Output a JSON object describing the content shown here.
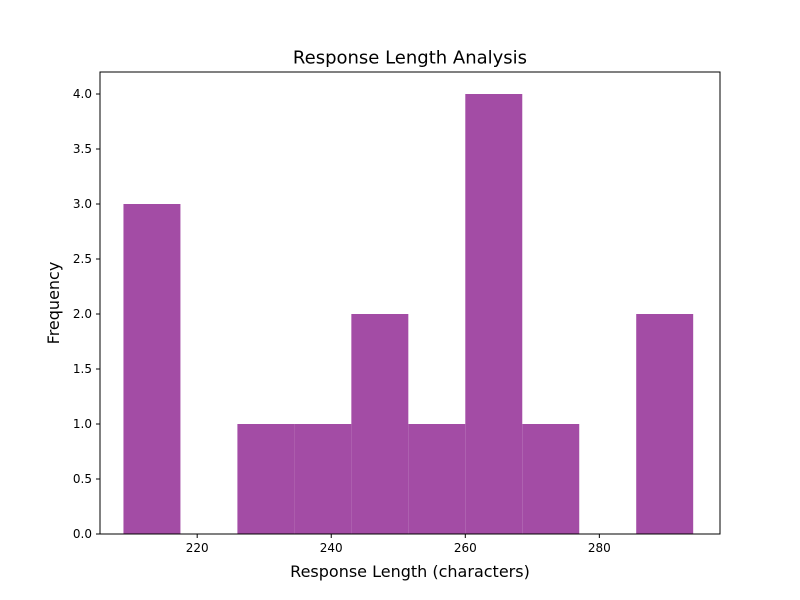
{
  "chart_data": {
    "type": "bar",
    "title": "Response Length Analysis",
    "xlabel": "Response Length (characters)",
    "ylabel": "Frequency",
    "bar_color": "#a34ca5",
    "xlim": [
      205.5,
      298
    ],
    "ylim": [
      0,
      4.2
    ],
    "x_ticks": [
      220,
      240,
      260,
      280
    ],
    "y_ticks": [
      0.0,
      0.5,
      1.0,
      1.5,
      2.0,
      2.5,
      3.0,
      3.5,
      4.0
    ],
    "x_tick_labels": [
      "220",
      "240",
      "260",
      "280"
    ],
    "y_tick_labels": [
      "0.0",
      "0.5",
      "1.0",
      "1.5",
      "2.0",
      "2.5",
      "3.0",
      "3.5",
      "4.0"
    ],
    "bin_edges": [
      209.0,
      217.5,
      226.0,
      234.5,
      243.0,
      251.5,
      260.0,
      268.5,
      277.0,
      285.5,
      294.0
    ],
    "values": [
      3,
      0,
      1,
      1,
      2,
      1,
      4,
      1,
      0,
      2
    ],
    "grid": false
  }
}
